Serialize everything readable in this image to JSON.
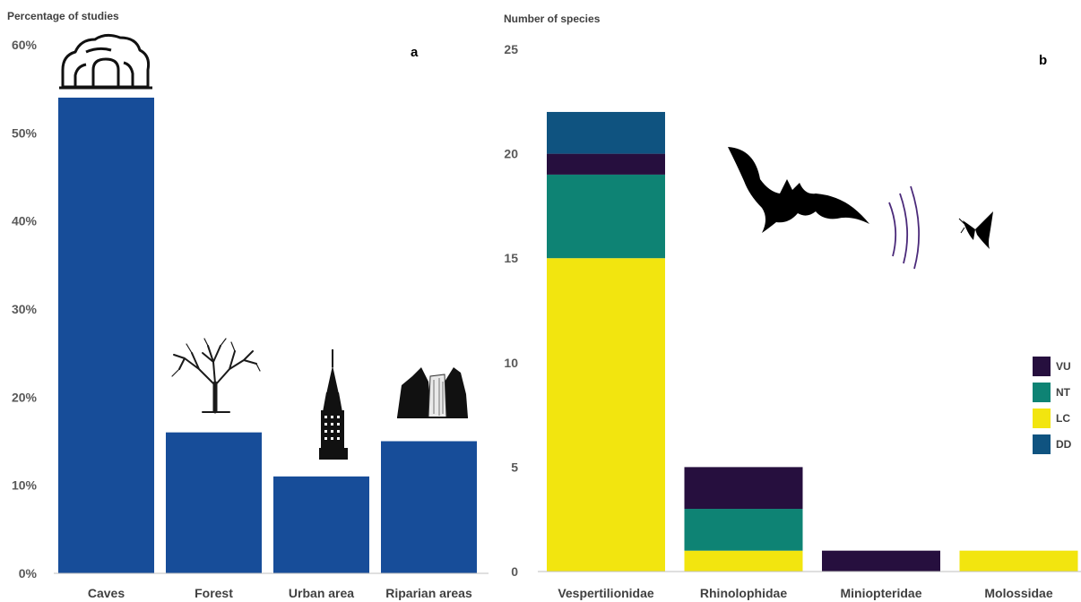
{
  "chart_data": [
    {
      "type": "bar",
      "panel": "a",
      "ylabel": "Percentage of studies",
      "ylim": [
        0,
        60
      ],
      "yticks": [
        "0%",
        "10%",
        "20%",
        "30%",
        "40%",
        "50%",
        "60%"
      ],
      "categories": [
        "Caves",
        "Forest",
        "Urban area",
        "Riparian areas"
      ],
      "values": [
        54,
        16,
        11,
        15
      ],
      "color": "#174D99",
      "icons": [
        "cave-icon",
        "tree-icon",
        "skyscraper-icon",
        "waterfall-icon"
      ]
    },
    {
      "type": "bar",
      "stacked": true,
      "panel": "b",
      "ylabel": "Number of species",
      "ylim": [
        0,
        25
      ],
      "yticks": [
        "0",
        "5",
        "10",
        "15",
        "20",
        "25"
      ],
      "categories": [
        "Vespertilionidae",
        "Rhinolophidae",
        "Miniopteridae",
        "Molossidae"
      ],
      "series": [
        {
          "name": "LC",
          "color": "#F2E50F",
          "values": [
            15,
            1,
            0,
            1
          ]
        },
        {
          "name": "NT",
          "color": "#0E8374",
          "values": [
            4,
            2,
            0,
            0
          ]
        },
        {
          "name": "VU",
          "color": "#260F3E",
          "values": [
            1,
            2,
            1,
            0
          ]
        },
        {
          "name": "DD",
          "color": "#0F5380",
          "values": [
            2,
            0,
            0,
            0
          ]
        }
      ],
      "legend": [
        "VU",
        "NT",
        "LC",
        "DD"
      ],
      "legend_position": "right",
      "icons": [
        "bat-icon",
        "echolocation-icon",
        "moth-icon"
      ]
    }
  ]
}
